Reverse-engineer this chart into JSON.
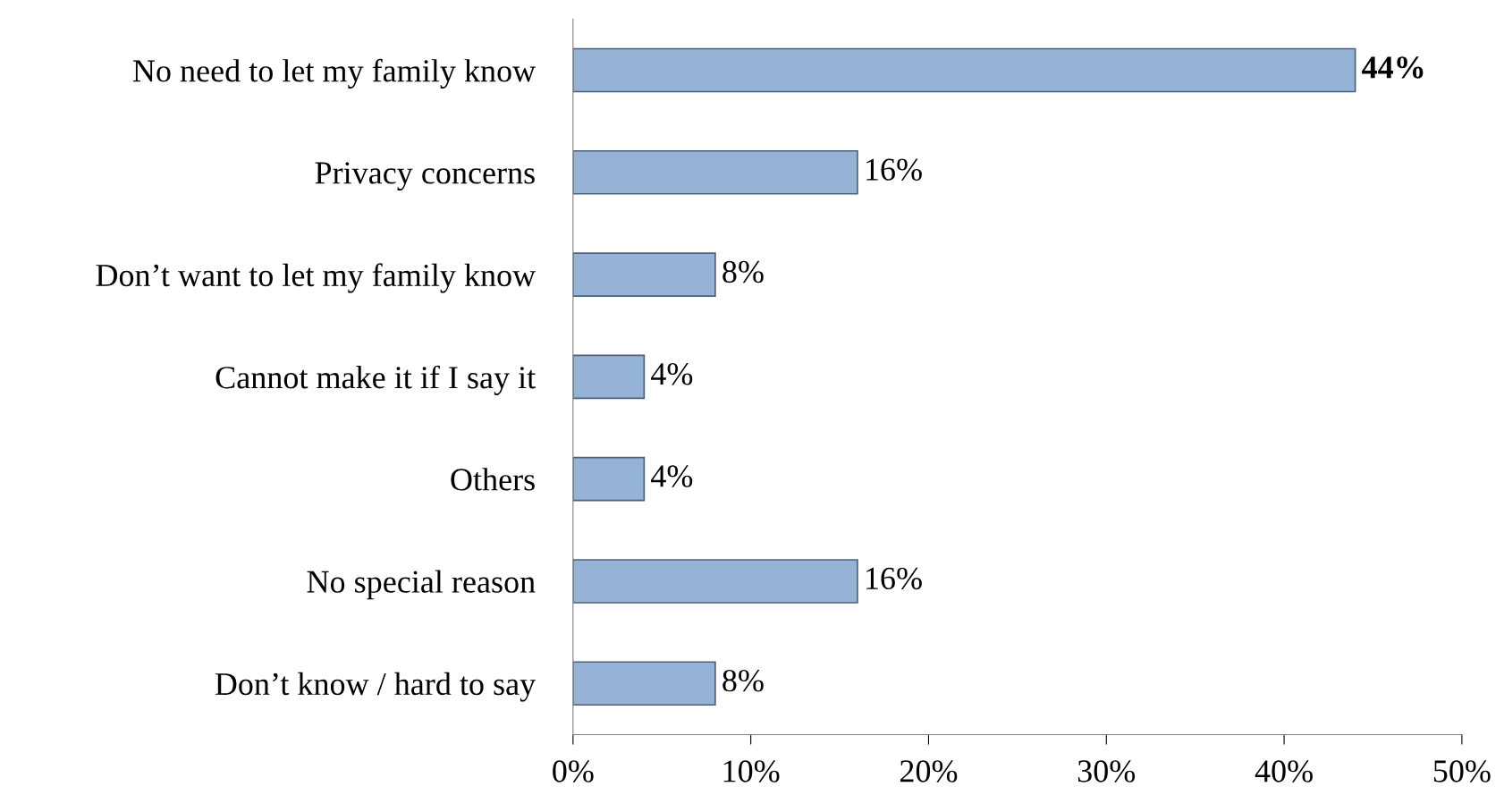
{
  "chart_data": {
    "type": "bar",
    "orientation": "horizontal",
    "categories": [
      "No need to let my family know",
      "Privacy concerns",
      "Don’t want to let my family know",
      "Cannot make it if I say it",
      "Others",
      "No special reason",
      "Don’t know / hard to say"
    ],
    "values": [
      44,
      16,
      8,
      4,
      4,
      16,
      8
    ],
    "value_labels": [
      "44%",
      "16%",
      "8%",
      "4%",
      "4%",
      "16%",
      "8%"
    ],
    "color": "#95b3d7",
    "xlim": [
      0,
      50
    ],
    "xticks": [
      {
        "value": 0,
        "label": "0%"
      },
      {
        "value": 10,
        "label": "10%"
      },
      {
        "value": 20,
        "label": "20%"
      },
      {
        "value": 30,
        "label": "30%"
      },
      {
        "value": 40,
        "label": "40%"
      },
      {
        "value": 50,
        "label": "50%"
      }
    ],
    "grid": false,
    "legend": false
  }
}
